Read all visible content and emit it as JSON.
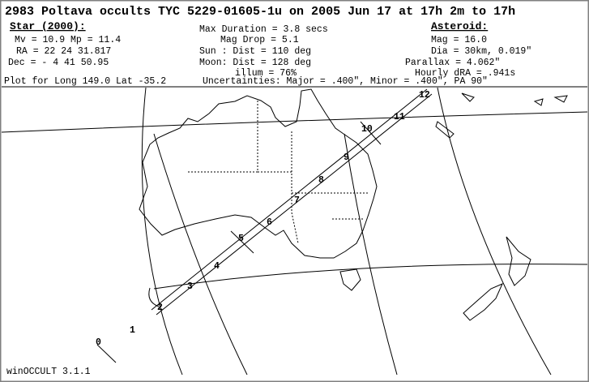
{
  "header": {
    "title": "2983 Poltava occults TYC 5229-01605-1u on 2005 Jun 17 at 17h 2m to 17h",
    "star_heading": "Star (2000):",
    "star_lines": [
      "Mv = 10.9    Mp = 11.4",
      "RA =  22 24 31.817",
      "Dec = - 4 41 50.95"
    ],
    "plot_for": "Plot for Long 149.0  Lat -35.2",
    "event_lines": [
      "Max Duration = 3.8 secs",
      "Mag Drop =  5.1",
      "Sun :   Dist = 110 deg",
      "Moon:   Dist = 128 deg",
      "illum = 76%"
    ],
    "uncertainties": "Uncertainties: Major = .400\", Minor = .400\", PA 90\"",
    "asteroid_heading": "Asteroid:",
    "asteroid_lines": [
      "Mag = 16.0",
      "Dia = 30km, 0.019\"",
      "Parallax = 4.062\"",
      "Hourly dRA = .941s"
    ]
  },
  "map": {
    "path_labels": [
      "0",
      "1",
      "2",
      "3",
      "4",
      "5",
      "6",
      "7",
      "8",
      "9",
      "10",
      "11",
      "12"
    ],
    "footer": "winOCCULT 3.1.1"
  }
}
